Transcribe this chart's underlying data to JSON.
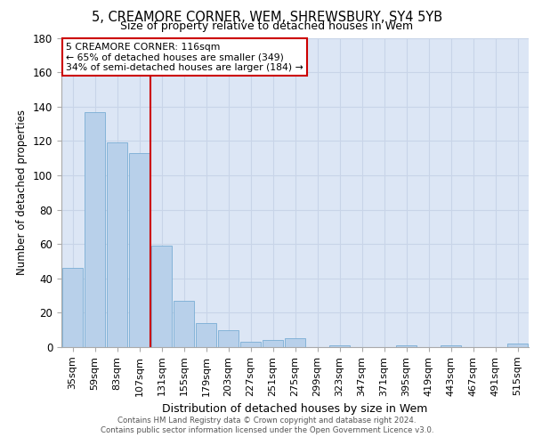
{
  "title_line1": "5, CREAMORE CORNER, WEM, SHREWSBURY, SY4 5YB",
  "title_line2": "Size of property relative to detached houses in Wem",
  "xlabel": "Distribution of detached houses by size in Wem",
  "ylabel": "Number of detached properties",
  "categories": [
    "35sqm",
    "59sqm",
    "83sqm",
    "107sqm",
    "131sqm",
    "155sqm",
    "179sqm",
    "203sqm",
    "227sqm",
    "251sqm",
    "275sqm",
    "299sqm",
    "323sqm",
    "347sqm",
    "371sqm",
    "395sqm",
    "419sqm",
    "443sqm",
    "467sqm",
    "491sqm",
    "515sqm"
  ],
  "values": [
    46,
    137,
    119,
    113,
    59,
    27,
    14,
    10,
    3,
    4,
    5,
    0,
    1,
    0,
    0,
    1,
    0,
    1,
    0,
    0,
    2
  ],
  "bar_color": "#b8d0ea",
  "bar_edge_color": "#7aadd4",
  "vline_x": 3.5,
  "vline_color": "#cc0000",
  "annotation_line1": "5 CREAMORE CORNER: 116sqm",
  "annotation_line2": "← 65% of detached houses are smaller (349)",
  "annotation_line3": "34% of semi-detached houses are larger (184) →",
  "annotation_box_edge": "#cc0000",
  "ylim": [
    0,
    180
  ],
  "yticks": [
    0,
    20,
    40,
    60,
    80,
    100,
    120,
    140,
    160,
    180
  ],
  "footer_line1": "Contains HM Land Registry data © Crown copyright and database right 2024.",
  "footer_line2": "Contains public sector information licensed under the Open Government Licence v3.0.",
  "grid_color": "#c8d4e8",
  "background_color": "#dce6f5",
  "fig_background": "#ffffff"
}
